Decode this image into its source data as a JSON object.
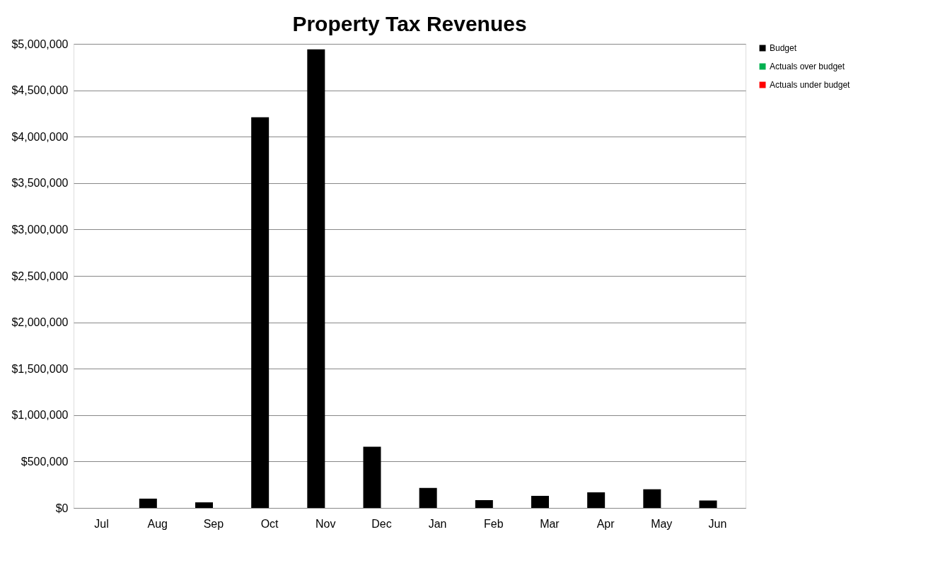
{
  "chart_data": {
    "type": "bar",
    "title": "Property Tax Revenues",
    "categories": [
      "Jul",
      "Aug",
      "Sep",
      "Oct",
      "Nov",
      "Dec",
      "Jan",
      "Feb",
      "Mar",
      "Apr",
      "May",
      "Jun"
    ],
    "series": [
      {
        "name": "Budget",
        "color": "#000000",
        "values": [
          0,
          100000,
          60000,
          4210000,
          4940000,
          660000,
          215000,
          84000,
          130000,
          168000,
          201000,
          80000
        ]
      },
      {
        "name": "Actuals over budget",
        "color": "#00b050",
        "values": [
          null,
          null,
          null,
          null,
          null,
          null,
          null,
          null,
          null,
          null,
          null,
          null
        ]
      },
      {
        "name": "Actuals under budget",
        "color": "#ff0000",
        "values": [
          null,
          null,
          null,
          null,
          null,
          null,
          null,
          null,
          null,
          null,
          null,
          null
        ]
      }
    ],
    "ylim": [
      0,
      5000000
    ],
    "yticks": [
      {
        "value": 0,
        "label": "$0"
      },
      {
        "value": 500000,
        "label": "$500,000"
      },
      {
        "value": 1000000,
        "label": "$1,000,000"
      },
      {
        "value": 1500000,
        "label": "$1,500,000"
      },
      {
        "value": 2000000,
        "label": "$2,000,000"
      },
      {
        "value": 2500000,
        "label": "$2,500,000"
      },
      {
        "value": 3000000,
        "label": "$3,000,000"
      },
      {
        "value": 3500000,
        "label": "$3,500,000"
      },
      {
        "value": 4000000,
        "label": "$4,000,000"
      },
      {
        "value": 4500000,
        "label": "$4,500,000"
      },
      {
        "value": 5000000,
        "label": "$5,000,000"
      }
    ],
    "grid": "y",
    "legend": "right"
  }
}
